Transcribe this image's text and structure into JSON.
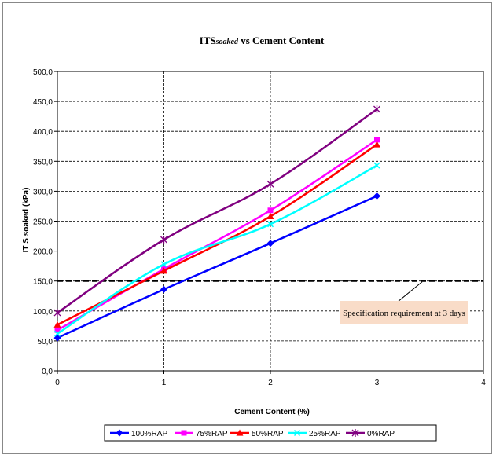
{
  "chart_data": {
    "type": "line",
    "title_parts": [
      "ITS",
      "soaked",
      " vs Cement Content"
    ],
    "xlabel": "Cement Content (%)",
    "ylabel": "IT S soaked (kPa)",
    "xlim": [
      0,
      4
    ],
    "ylim": [
      0,
      500
    ],
    "xticks": [
      "0",
      "1",
      "2",
      "3",
      "4"
    ],
    "yticks": [
      "0,0",
      "50,0",
      "100,0",
      "150,0",
      "200,0",
      "250,0",
      "300,0",
      "350,0",
      "400,0",
      "450,0",
      "500,0"
    ],
    "grid": true,
    "legend_position": "bottom",
    "series": [
      {
        "name": "100%RAP",
        "color": "#0000ff",
        "marker": "diamond",
        "x": [
          0,
          1,
          2,
          3
        ],
        "values": [
          55,
          136,
          213,
          292
        ]
      },
      {
        "name": "75%RAP",
        "color": "#ff00ff",
        "marker": "square",
        "x": [
          0,
          1,
          2,
          3
        ],
        "values": [
          68,
          170,
          268,
          386
        ]
      },
      {
        "name": "50%RAP",
        "color": "#ff0000",
        "marker": "triangle",
        "x": [
          0,
          1,
          2,
          3
        ],
        "values": [
          77,
          167,
          258,
          378
        ]
      },
      {
        "name": "25%RAP",
        "color": "#00ffff",
        "marker": "x",
        "x": [
          0,
          1,
          2,
          3
        ],
        "values": [
          62,
          178,
          245,
          343
        ]
      },
      {
        "name": "0%RAP",
        "color": "#800080",
        "marker": "star",
        "x": [
          0,
          1,
          2,
          3
        ],
        "values": [
          97,
          219,
          312,
          437
        ]
      }
    ],
    "reference_line": {
      "y": 150,
      "label": "Specification requirement at 3 days",
      "style": "dashed"
    }
  }
}
